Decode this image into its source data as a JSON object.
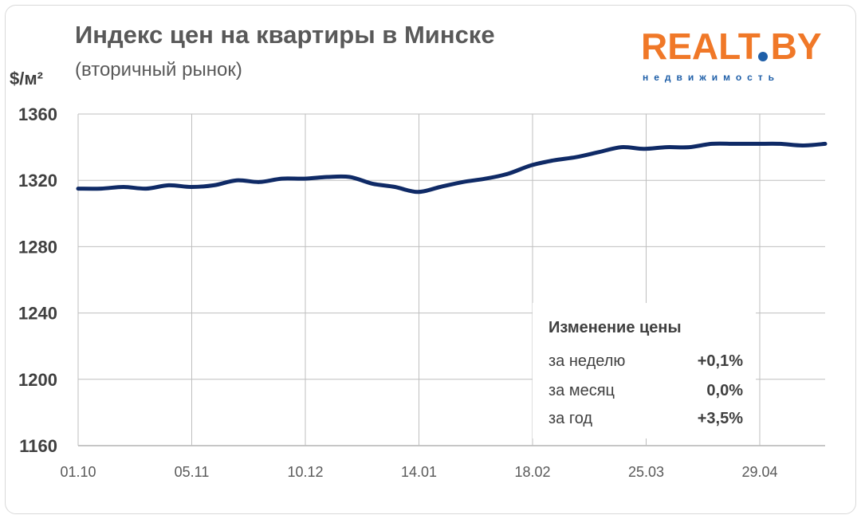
{
  "chart_data": {
    "type": "line",
    "title": "Индекс цен на квартиры в Минске",
    "subtitle": "(вторичный рынок)",
    "ylabel": "$/м²",
    "xlabel": "",
    "ylim": [
      1160,
      1360
    ],
    "yticks": [
      "1360",
      "1320",
      "1280",
      "1240",
      "1200",
      "1160"
    ],
    "x_ticks": [
      "01.10",
      "05.11",
      "10.12",
      "14.01",
      "18.02",
      "25.03",
      "29.04"
    ],
    "grid": true,
    "series": [
      {
        "color": "#0f2a66",
        "values": [
          1315,
          1315,
          1316,
          1315,
          1317,
          1316,
          1317,
          1320,
          1319,
          1321,
          1321,
          1322,
          1322,
          1318,
          1316,
          1313,
          1316,
          1319,
          1321,
          1324,
          1329,
          1332,
          1334,
          1337,
          1340,
          1339,
          1340,
          1340,
          1342,
          1342,
          1342,
          1342,
          1341,
          1342
        ]
      }
    ]
  },
  "price_change": {
    "title": "Изменение цены",
    "rows": [
      {
        "label": "за неделю",
        "value": "+0,1%"
      },
      {
        "label": "за месяц",
        "value": "0,0%"
      },
      {
        "label": "за год",
        "value": "+3,5%"
      }
    ]
  },
  "logo": {
    "main": "REALT BY",
    "sub": "недвижимость"
  },
  "colors": {
    "line": "#0f2a66",
    "grid": "#bfbfbf",
    "logo_orange": "#f07828",
    "logo_blue": "#1f5fa8",
    "text": "#404040"
  }
}
